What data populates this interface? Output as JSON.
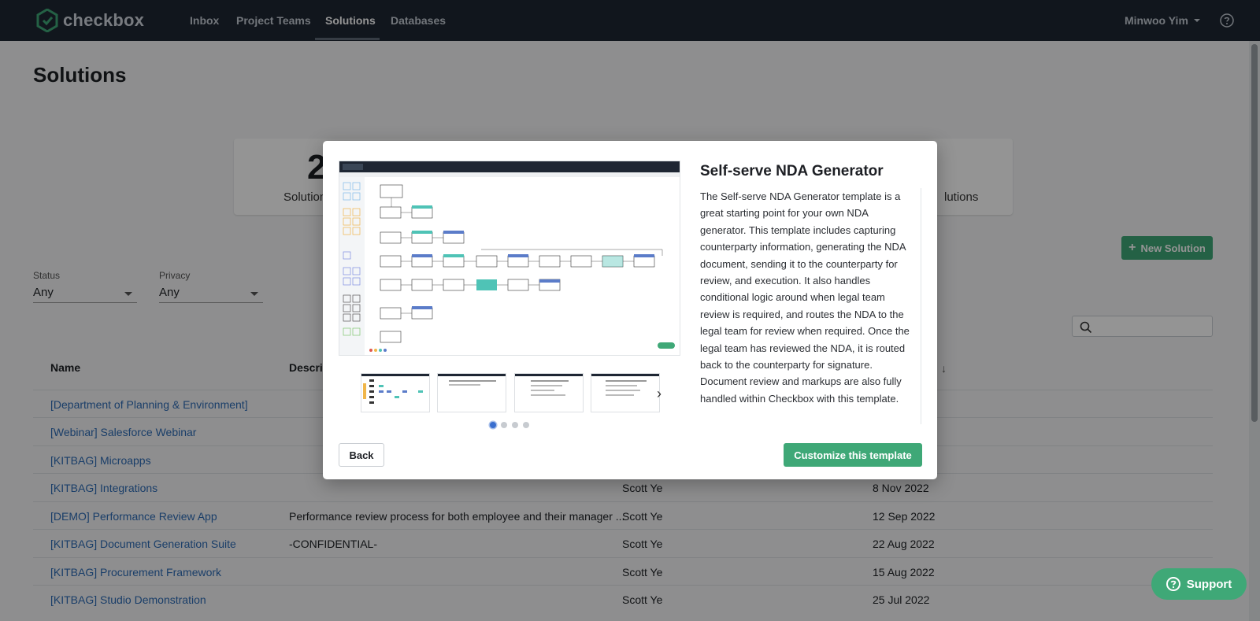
{
  "nav": {
    "logo_text": "checkbox",
    "links": [
      "Inbox",
      "Project Teams",
      "Solutions",
      "Databases"
    ],
    "active": "Solutions",
    "user": "Minwoo Yim"
  },
  "page": {
    "title": "Solutions",
    "stats": {
      "count_partial": "2",
      "label_left": "Solution",
      "label_right": "lutions"
    },
    "new_solution_label": "New Solution",
    "filters": {
      "status": {
        "label": "Status",
        "value": "Any"
      },
      "privacy": {
        "label": "Privacy",
        "value": "Any"
      }
    },
    "table": {
      "headers": {
        "name": "Name",
        "description": "Descrip"
      },
      "rows": [
        {
          "name": "[Department of Planning & Environment]",
          "description": "",
          "owner": "",
          "date": ""
        },
        {
          "name": "[Webinar] Salesforce Webinar",
          "description": "",
          "owner": "",
          "date": ""
        },
        {
          "name": "[KITBAG] Microapps",
          "description": "",
          "owner": "",
          "date": ""
        },
        {
          "name": "[KITBAG] Integrations",
          "description": "",
          "owner": "Scott Ye",
          "date": "8 Nov 2022"
        },
        {
          "name": "[DEMO] Performance Review App",
          "description": "Performance review process for both employee and their manager ...",
          "owner": "Scott Ye",
          "date": "12 Sep 2022"
        },
        {
          "name": "[KITBAG] Document Generation Suite",
          "description": "-CONFIDENTIAL-",
          "owner": "Scott Ye",
          "date": "22 Aug 2022"
        },
        {
          "name": "[KITBAG] Procurement Framework",
          "description": "",
          "owner": "Scott Ye",
          "date": "15 Aug 2022"
        },
        {
          "name": "[KITBAG] Studio Demonstration",
          "description": "",
          "owner": "Scott Ye",
          "date": "25 Jul 2022"
        }
      ]
    },
    "support_label": "Support"
  },
  "modal": {
    "title": "Self-serve NDA Generator",
    "description": "The Self-serve NDA Generator template is a great starting point for your own NDA generator. This template includes capturing counterparty information, generating the NDA document, sending it to the counterparty for review, and execution. It also handles conditional logic around when legal team review is required, and routes the NDA to the legal team for review when required. Once the legal team has reviewed the NDA, it is routed back to the counterparty for signature. Document review and markups are also fully handled within Checkbox with this template.",
    "back_label": "Back",
    "customize_label": "Customize this template",
    "carousel": {
      "slides": 4,
      "active": 1
    }
  },
  "colors": {
    "nav_bg": "#1e2633",
    "accent_green": "#3fa877",
    "link_blue": "#2d6bb5",
    "dot_active": "#3a6fcf"
  },
  "icons": [
    "checkbox-logo-icon",
    "chevron-down-icon",
    "help-icon",
    "plus-icon",
    "search-icon",
    "sort-down-icon",
    "chevron-right-icon",
    "question-icon"
  ]
}
